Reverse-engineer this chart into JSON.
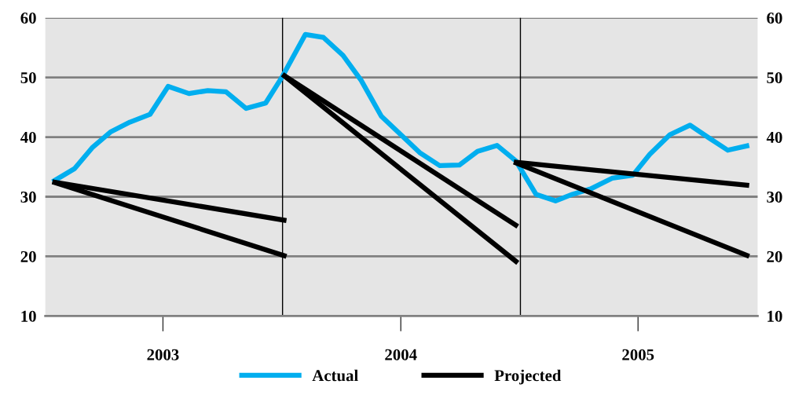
{
  "chart_data": {
    "type": "line",
    "series": [
      {
        "name": "Actual",
        "color": "#00aeef",
        "x": [
          "2003-01-12",
          "2003-02-15",
          "2003-03-14",
          "2003-04-12",
          "2003-05-11",
          "2003-06-11",
          "2003-07-09",
          "2003-08-10",
          "2003-09-08",
          "2003-10-06",
          "2003-11-06",
          "2003-12-06",
          "2004-01-01",
          "2004-02-05",
          "2004-03-04",
          "2004-04-03",
          "2004-05-01",
          "2004-06-01",
          "2004-07-01",
          "2004-07-30",
          "2004-08-30",
          "2004-09-29",
          "2004-10-27",
          "2004-11-26",
          "2004-12-25",
          "2005-01-25",
          "2005-02-24",
          "2005-03-22",
          "2005-04-19",
          "2005-05-22",
          "2005-06-23",
          "2005-07-19",
          "2005-08-19",
          "2005-09-19",
          "2005-10-19",
          "2005-11-16",
          "2005-12-19"
        ],
        "values": [
          32.5,
          34.7,
          38.2,
          40.9,
          42.5,
          43.8,
          48.5,
          47.3,
          47.8,
          47.6,
          44.8,
          45.7,
          50.2,
          57.2,
          56.7,
          53.7,
          49.5,
          43.5,
          40.4,
          37.4,
          35.2,
          35.3,
          37.6,
          38.6,
          36.0,
          30.4,
          29.3,
          30.4,
          31.3,
          33.1,
          33.6,
          37.1,
          40.4,
          42.0,
          39.8,
          37.8,
          38.6
        ]
      },
      {
        "name": "Projected",
        "color": "#000000",
        "x": [
          "2003-01-12",
          "2004-01-07"
        ],
        "values": [
          32.5,
          26.0
        ]
      },
      {
        "color": "#000000",
        "x": [
          "2003-01-12",
          "2004-01-07"
        ],
        "values": [
          32.5,
          20.0
        ]
      },
      {
        "color": "#000000",
        "x": [
          "2004-01-01",
          "2004-12-28"
        ],
        "values": [
          50.5,
          25.0
        ]
      },
      {
        "color": "#000000",
        "x": [
          "2004-01-01",
          "2004-12-28"
        ],
        "values": [
          50.5,
          18.9
        ]
      },
      {
        "color": "#000000",
        "x": [
          "2004-12-22",
          "2005-12-19"
        ],
        "values": [
          35.8,
          31.9
        ]
      },
      {
        "color": "#000000",
        "x": [
          "2004-12-22",
          "2005-12-19"
        ],
        "values": [
          35.8,
          20.0
        ]
      }
    ],
    "xlim": [
      "2003-01-01",
      "2006-01-01"
    ],
    "xticks": [
      {
        "value": "2003-07-01",
        "label": "2003"
      },
      {
        "value": "2004-07-01",
        "label": "2004"
      },
      {
        "value": "2005-07-01",
        "label": "2005"
      }
    ],
    "ylim": [
      10,
      60
    ],
    "yticks": [
      10,
      20,
      30,
      40,
      50,
      60
    ],
    "y2lim": [
      10,
      60
    ],
    "y2ticks": [
      10,
      20,
      30,
      40,
      50,
      60
    ],
    "ref_lines": [
      {
        "axis": "x",
        "value": "2004-01-01",
        "color": "#000000"
      },
      {
        "axis": "x",
        "value": "2005-01-01",
        "color": "#000000"
      }
    ],
    "grid": "y",
    "legend": "bottom",
    "marker": "none",
    "line_style": "solid"
  }
}
